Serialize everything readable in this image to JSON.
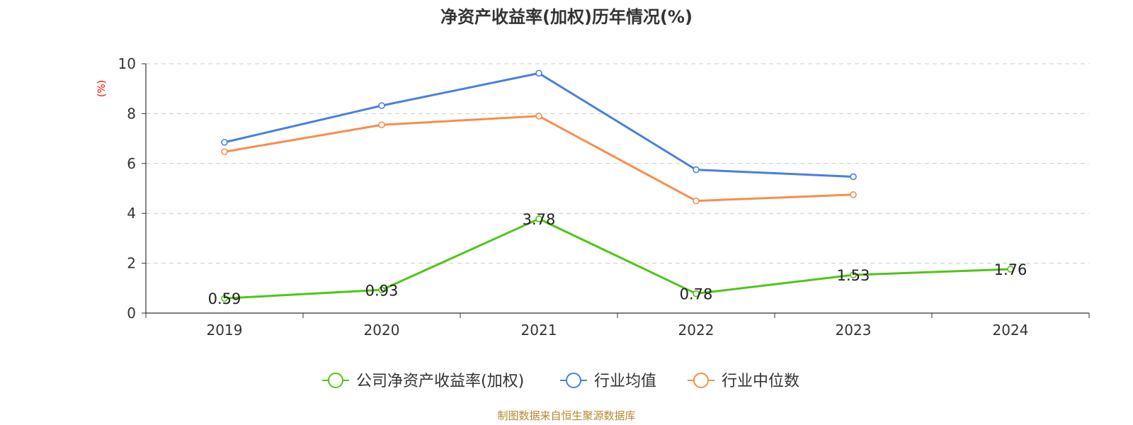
{
  "chart_data": {
    "type": "line",
    "title": "净资产收益率(加权)历年情况(%)",
    "ylabel": "(%)",
    "xlabel": "",
    "categories": [
      "2019",
      "2020",
      "2021",
      "2022",
      "2023",
      "2024"
    ],
    "ylim": [
      0,
      10
    ],
    "yticks": [
      0,
      2,
      4,
      6,
      8,
      10
    ],
    "grid": true,
    "legend_position": "bottom-center",
    "series": [
      {
        "name": "公司净资产收益率(加权)",
        "color": "#52c41a",
        "values": [
          0.59,
          0.93,
          3.78,
          0.78,
          1.53,
          1.76
        ],
        "labels": [
          "0.59",
          "0.93",
          "3.78",
          "0.78",
          "1.53",
          "1.76"
        ],
        "show_labels": true
      },
      {
        "name": "行业均值",
        "color": "#4a7fe0",
        "values": [
          6.85,
          8.32,
          9.62,
          5.75,
          5.47,
          null
        ],
        "show_labels": false
      },
      {
        "name": "行业中位数",
        "color": "#fa8c4f",
        "values": [
          6.47,
          7.55,
          7.9,
          4.5,
          4.75,
          null
        ],
        "show_labels": false
      }
    ],
    "source": "制图数据来自恒生聚源数据库"
  }
}
